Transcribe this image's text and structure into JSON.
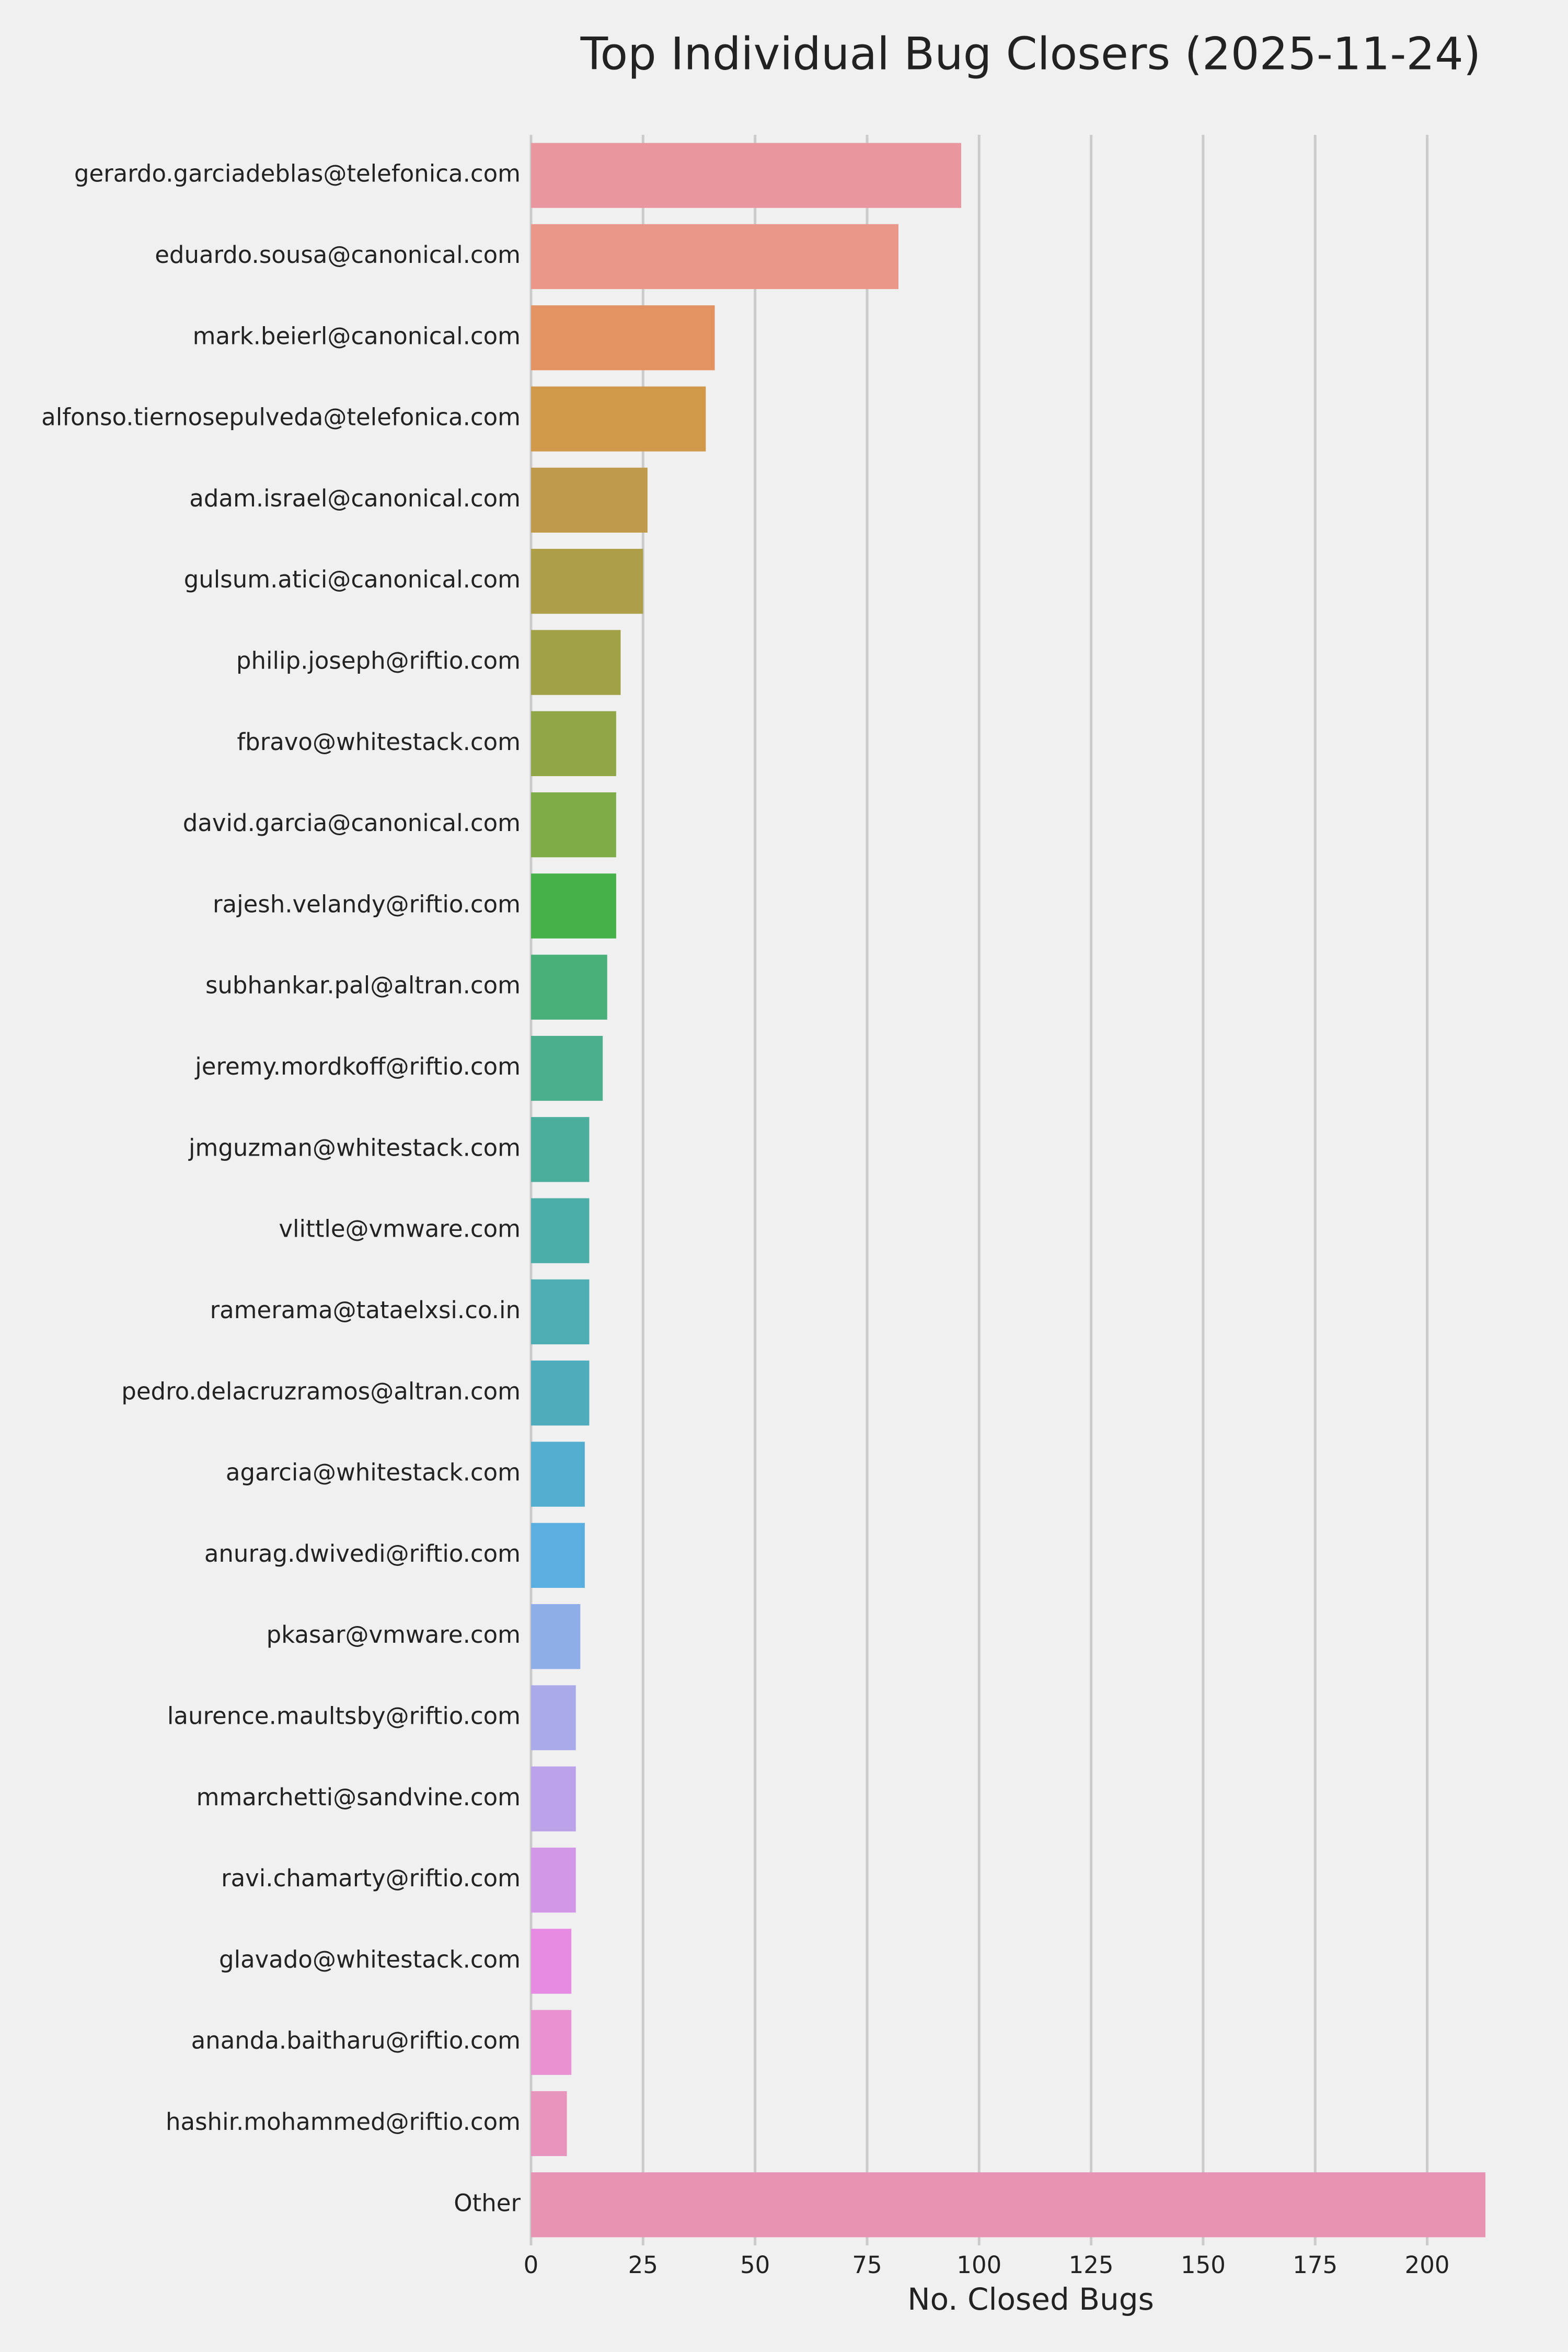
{
  "chart_data": {
    "type": "bar",
    "orientation": "horizontal",
    "title": "Top Individual Bug Closers (2025-11-24)",
    "xlabel": "No. Closed Bugs",
    "categories": [
      "gerardo.garciadeblas@telefonica.com",
      "eduardo.sousa@canonical.com",
      "mark.beierl@canonical.com",
      "alfonso.tiernosepulveda@telefonica.com",
      "adam.israel@canonical.com",
      "gulsum.atici@canonical.com",
      "philip.joseph@riftio.com",
      "fbravo@whitestack.com",
      "david.garcia@canonical.com",
      "rajesh.velandy@riftio.com",
      "subhankar.pal@altran.com",
      "jeremy.mordkoff@riftio.com",
      "jmguzman@whitestack.com",
      "vlittle@vmware.com",
      "ramerama@tataelxsi.co.in",
      "pedro.delacruzramos@altran.com",
      "agarcia@whitestack.com",
      "anurag.dwivedi@riftio.com",
      "pkasar@vmware.com",
      "laurence.maultsby@riftio.com",
      "mmarchetti@sandvine.com",
      "ravi.chamarty@riftio.com",
      "glavado@whitestack.com",
      "ananda.baitharu@riftio.com",
      "hashir.mohammed@riftio.com",
      "Other"
    ],
    "values": [
      96,
      82,
      41,
      39,
      26,
      25,
      20,
      19,
      19,
      19,
      17,
      16,
      13,
      13,
      13,
      13,
      12,
      12,
      11,
      10,
      10,
      10,
      9,
      9,
      8,
      213
    ],
    "colors": [
      "#e9969f",
      "#e8978a",
      "#e39362",
      "#d19849",
      "#bf9a4a",
      "#ad9f48",
      "#a0a145",
      "#91a747",
      "#7fab48",
      "#46b147",
      "#4ab079",
      "#4aae8c",
      "#4bae9c",
      "#4caea8",
      "#4dadb3",
      "#4eacbc",
      "#52adcf",
      "#5aafe0",
      "#8fade9",
      "#aaaae9",
      "#bca2e8",
      "#d297e6",
      "#e68ae2",
      "#e892d0",
      "#e895be",
      "#e892b4"
    ],
    "xlim": [
      0,
      213
    ],
    "xticks": [
      0,
      25,
      50,
      75,
      100,
      125,
      150,
      175,
      200
    ],
    "grid": true
  }
}
